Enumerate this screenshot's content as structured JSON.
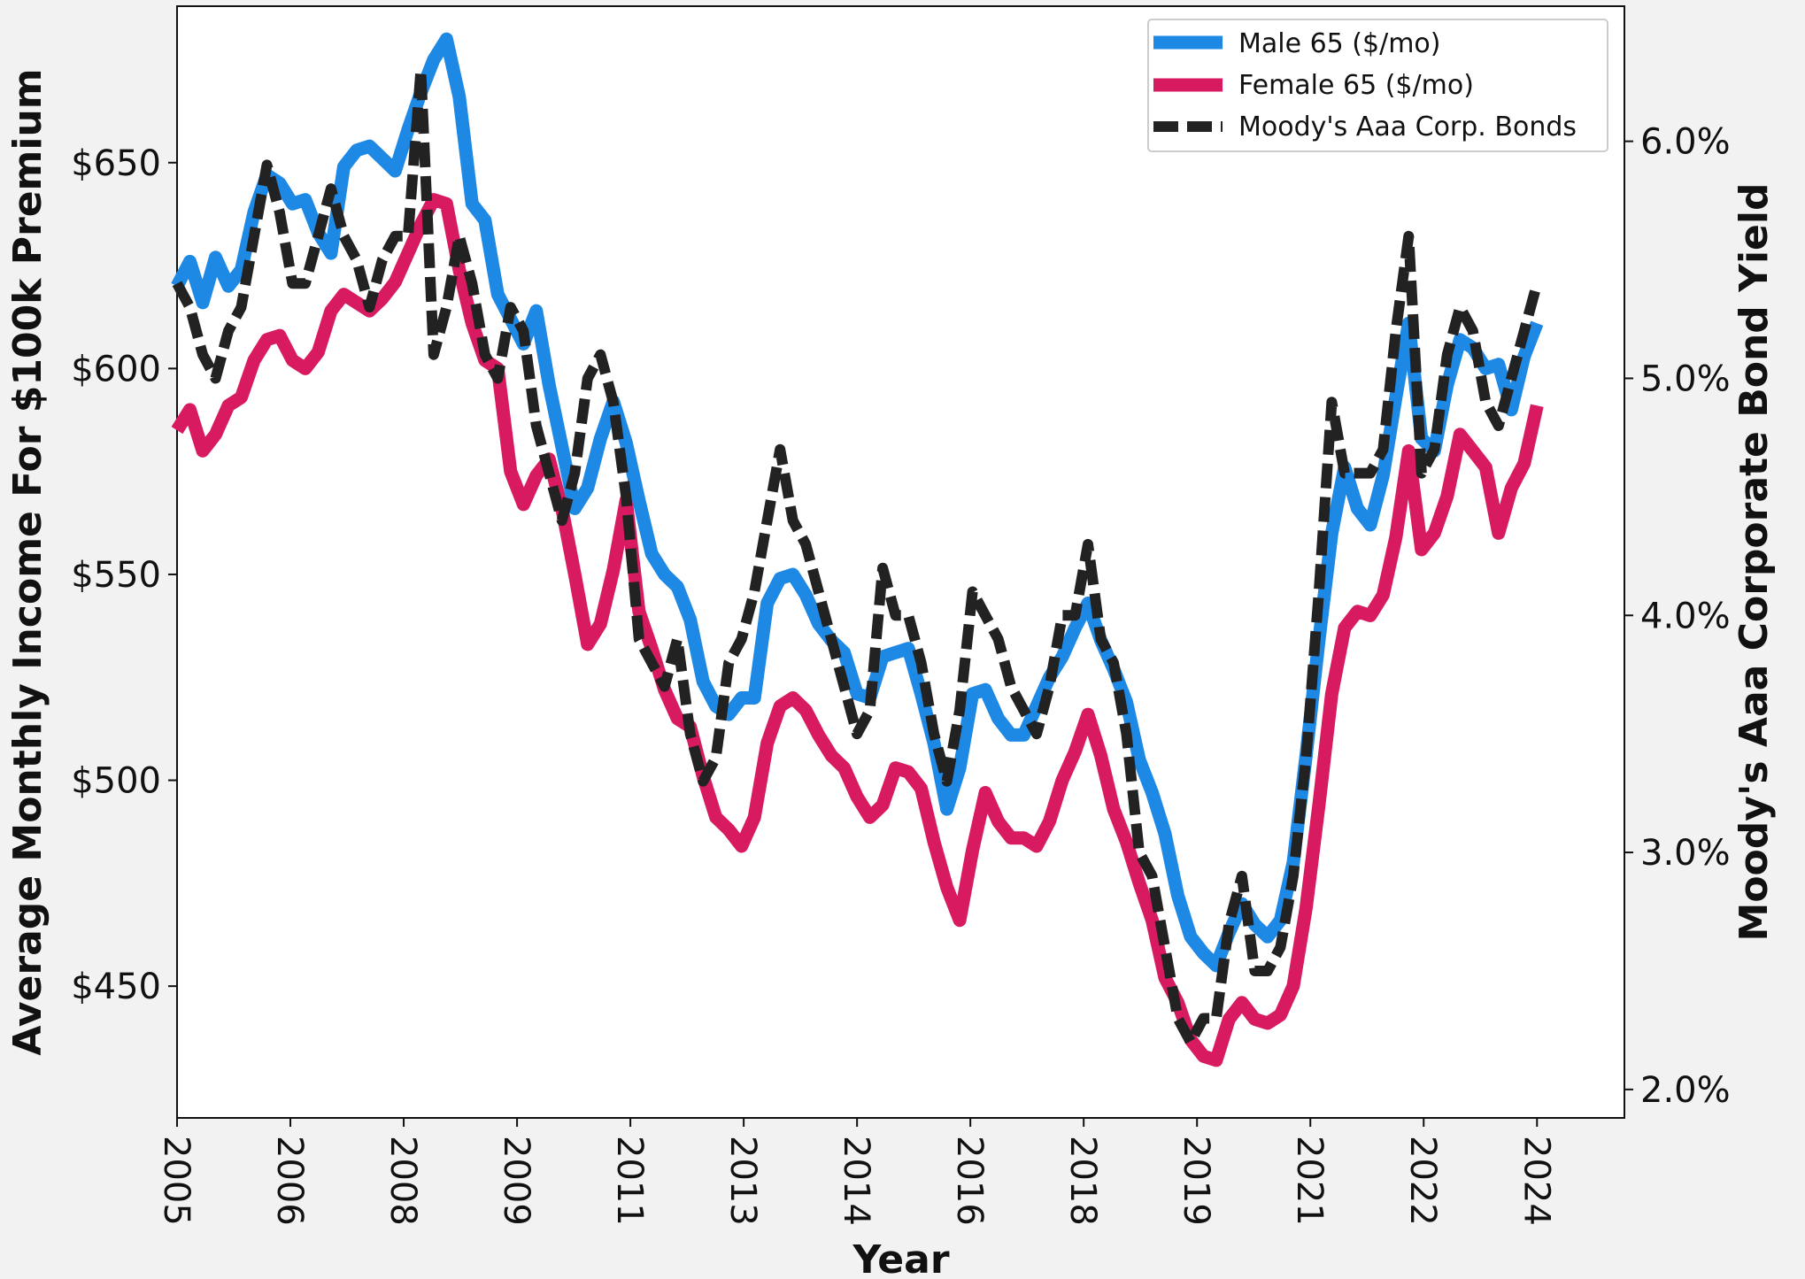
{
  "chart_data": {
    "type": "line",
    "xlabel": "Year",
    "ylabel_left": "Average Monthly Income For $100k Premium",
    "ylabel_right": "Moody's Aaa Corporate Bond Yield",
    "x_ticks": [
      "2005",
      "2006",
      "2008",
      "2009",
      "2011",
      "2013",
      "2014",
      "2016",
      "2018",
      "2019",
      "2021",
      "2022",
      "2024"
    ],
    "x_range": [
      2005.0,
      2024.45
    ],
    "xlim": [
      2005.0,
      2025.7
    ],
    "ylim_left": [
      418,
      688
    ],
    "ylim_right": [
      1.88,
      6.57
    ],
    "y_ticks_left": [
      {
        "value": 450,
        "label": "$450"
      },
      {
        "value": 500,
        "label": "$500"
      },
      {
        "value": 550,
        "label": "$550"
      },
      {
        "value": 600,
        "label": "$600"
      },
      {
        "value": 650,
        "label": "$650"
      }
    ],
    "y_ticks_right": [
      {
        "value": 2.0,
        "label": "2.0%"
      },
      {
        "value": 3.0,
        "label": "3.0%"
      },
      {
        "value": 4.0,
        "label": "4.0%"
      },
      {
        "value": 5.0,
        "label": "5.0%"
      },
      {
        "value": 6.0,
        "label": "6.0%"
      }
    ],
    "grid": false,
    "legend_position": "top-right",
    "series": [
      {
        "name": "Male 65 ($/mo)",
        "axis": "left",
        "color": "#1e88e5",
        "style": "solid",
        "values": [
          620,
          626,
          616,
          627,
          620,
          624,
          638,
          647,
          645,
          640,
          641,
          633,
          628,
          649,
          653,
          654,
          651,
          648,
          658,
          667,
          675,
          680,
          666,
          640,
          636,
          618,
          612,
          606,
          614,
          596,
          581,
          566,
          571,
          583,
          592,
          582,
          568,
          555,
          550,
          547,
          539,
          524,
          518,
          516,
          520,
          520,
          543,
          549,
          550,
          545,
          538,
          534,
          531,
          521,
          520,
          530,
          531,
          532,
          521,
          509,
          493,
          503,
          521,
          522,
          515,
          511,
          511,
          518,
          525,
          530,
          537,
          543,
          534,
          527,
          519,
          505,
          497,
          487,
          472,
          462,
          458,
          455,
          463,
          470,
          465,
          462,
          466,
          480,
          506,
          534,
          560,
          576,
          566,
          562,
          574,
          593,
          611,
          583,
          580,
          596,
          607,
          605,
          600,
          601,
          590,
          603,
          611
        ]
      },
      {
        "name": "Female 65 ($/mo)",
        "axis": "left",
        "color": "#d81b60",
        "style": "solid",
        "values": [
          585,
          590,
          580,
          584,
          591,
          593,
          602,
          607,
          608,
          602,
          600,
          604,
          614,
          618,
          616,
          614,
          617,
          621,
          628,
          635,
          641,
          640,
          624,
          611,
          602,
          600,
          575,
          567,
          574,
          578,
          566,
          550,
          533,
          538,
          551,
          568,
          541,
          532,
          522,
          515,
          513,
          501,
          491,
          488,
          484,
          491,
          509,
          518,
          520,
          517,
          511,
          506,
          503,
          496,
          491,
          494,
          503,
          502,
          498,
          485,
          474,
          466,
          483,
          497,
          490,
          486,
          486,
          484,
          490,
          500,
          507,
          516,
          506,
          493,
          485,
          475,
          466,
          452,
          446,
          437,
          433,
          432,
          442,
          446,
          442,
          441,
          443,
          450,
          469,
          494,
          521,
          537,
          541,
          540,
          545,
          559,
          580,
          556,
          560,
          569,
          584,
          580,
          576,
          560,
          571,
          577,
          591
        ]
      },
      {
        "name": "Moody's Aaa Corp. Bonds",
        "axis": "right",
        "color": "#222222",
        "style": "dashed",
        "values": [
          5.4,
          5.3,
          5.1,
          5.0,
          5.2,
          5.3,
          5.6,
          5.9,
          5.7,
          5.4,
          5.4,
          5.6,
          5.8,
          5.6,
          5.5,
          5.3,
          5.5,
          5.6,
          5.6,
          6.3,
          5.1,
          5.3,
          5.6,
          5.4,
          5.1,
          5.0,
          5.3,
          5.2,
          4.8,
          4.6,
          4.4,
          4.6,
          5.0,
          5.1,
          4.9,
          4.5,
          3.9,
          3.8,
          3.7,
          3.9,
          3.5,
          3.3,
          3.4,
          3.8,
          3.9,
          4.1,
          4.4,
          4.7,
          4.4,
          4.3,
          4.1,
          3.9,
          3.7,
          3.5,
          3.6,
          4.2,
          4.0,
          4.0,
          3.8,
          3.5,
          3.3,
          3.6,
          4.1,
          4.0,
          3.9,
          3.7,
          3.6,
          3.5,
          3.7,
          4.0,
          4.0,
          4.3,
          3.9,
          3.8,
          3.5,
          3.0,
          2.9,
          2.6,
          2.3,
          2.2,
          2.3,
          2.3,
          2.7,
          2.9,
          2.5,
          2.5,
          2.6,
          2.9,
          3.4,
          4.1,
          4.9,
          4.6,
          4.6,
          4.6,
          4.7,
          5.2,
          5.6,
          4.6,
          4.7,
          5.1,
          5.3,
          5.2,
          4.9,
          4.8,
          5.0,
          5.2,
          5.4
        ]
      }
    ]
  }
}
